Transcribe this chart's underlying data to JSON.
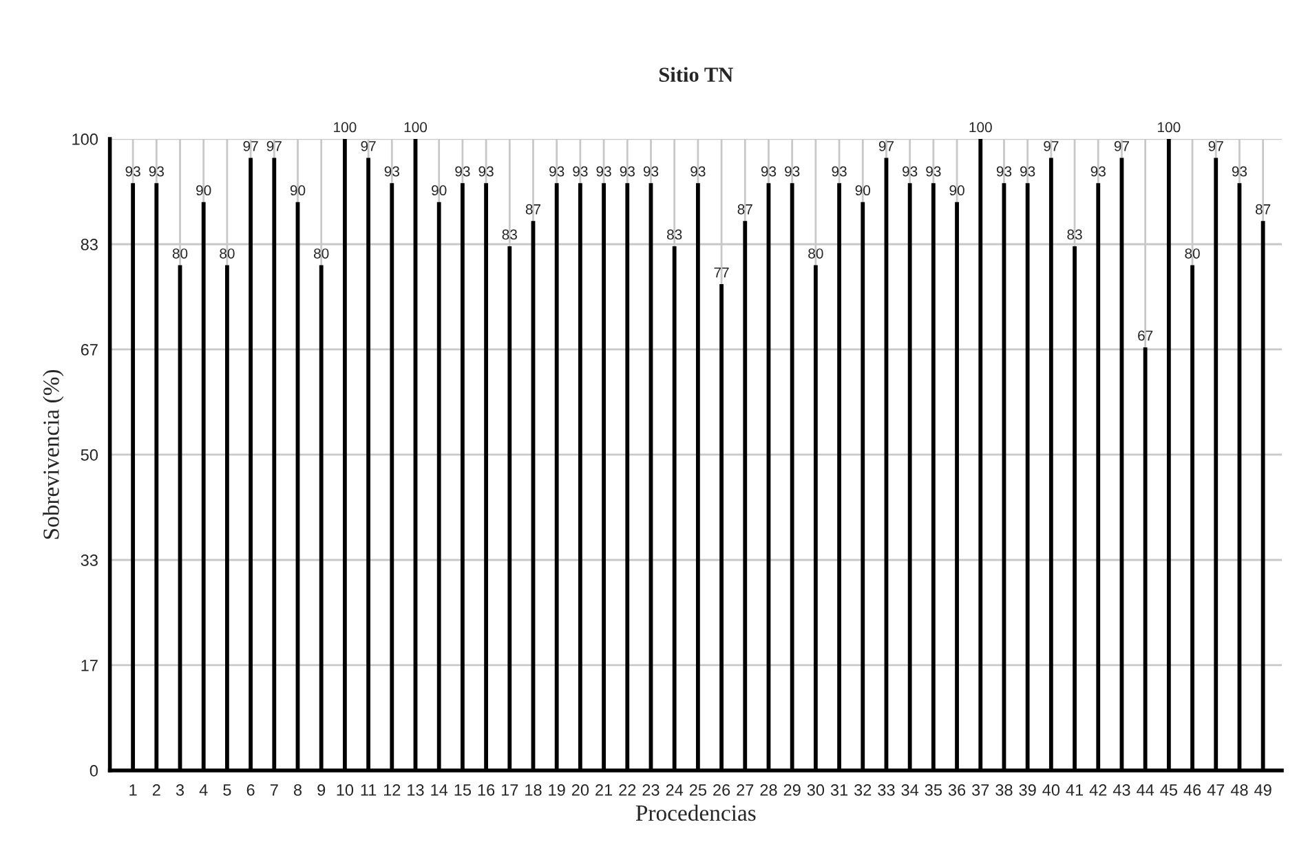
{
  "chart_data": {
    "type": "bar",
    "title": "Sitio TN",
    "xlabel": "Procedencias",
    "ylabel": "Sobrevivencia (%)",
    "categories": [
      "1",
      "2",
      "3",
      "4",
      "5",
      "6",
      "7",
      "8",
      "9",
      "10",
      "11",
      "12",
      "13",
      "14",
      "15",
      "16",
      "17",
      "18",
      "19",
      "20",
      "21",
      "22",
      "23",
      "24",
      "25",
      "26",
      "27",
      "28",
      "29",
      "30",
      "31",
      "32",
      "33",
      "34",
      "35",
      "36",
      "37",
      "38",
      "39",
      "40",
      "41",
      "42",
      "43",
      "44",
      "45",
      "46",
      "47",
      "48",
      "49"
    ],
    "values": [
      93,
      93,
      80,
      90,
      80,
      97,
      97,
      90,
      80,
      100,
      97,
      93,
      100,
      90,
      93,
      93,
      83,
      87,
      93,
      93,
      93,
      93,
      93,
      83,
      93,
      77,
      87,
      93,
      93,
      80,
      93,
      90,
      97,
      93,
      93,
      90,
      100,
      93,
      93,
      97,
      83,
      93,
      97,
      67,
      100,
      80,
      97,
      93,
      87
    ],
    "color": "#000000",
    "ylim": [
      0,
      100
    ],
    "yticks": [
      0,
      {
        "value": 16.67,
        "label": "17"
      },
      {
        "value": 33.33,
        "label": "33"
      },
      50,
      {
        "value": 66.67,
        "label": "67"
      },
      {
        "value": 83.33,
        "label": "83"
      },
      100
    ],
    "grid": true,
    "data_labels": true
  }
}
